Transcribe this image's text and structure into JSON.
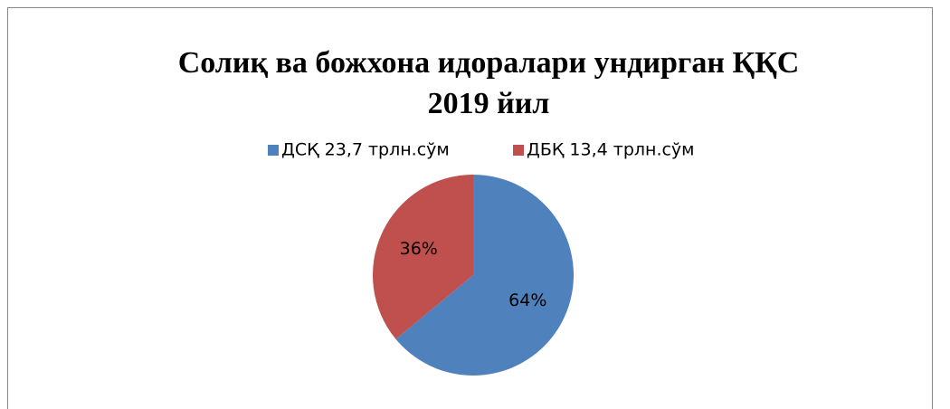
{
  "chart_data": {
    "type": "pie",
    "title": [
      "Солиқ ва божхона идоралари ундирган ҚҚС",
      "2019 йил"
    ],
    "categories": [
      "ДСҚ 23,7 трлн.сўм",
      "ДБҚ 13,4 трлн.сўм"
    ],
    "values": [
      64,
      36
    ],
    "value_labels": [
      "64%",
      "36%"
    ],
    "colors": [
      "#4f81bd",
      "#c0504d"
    ],
    "legend": "top"
  }
}
